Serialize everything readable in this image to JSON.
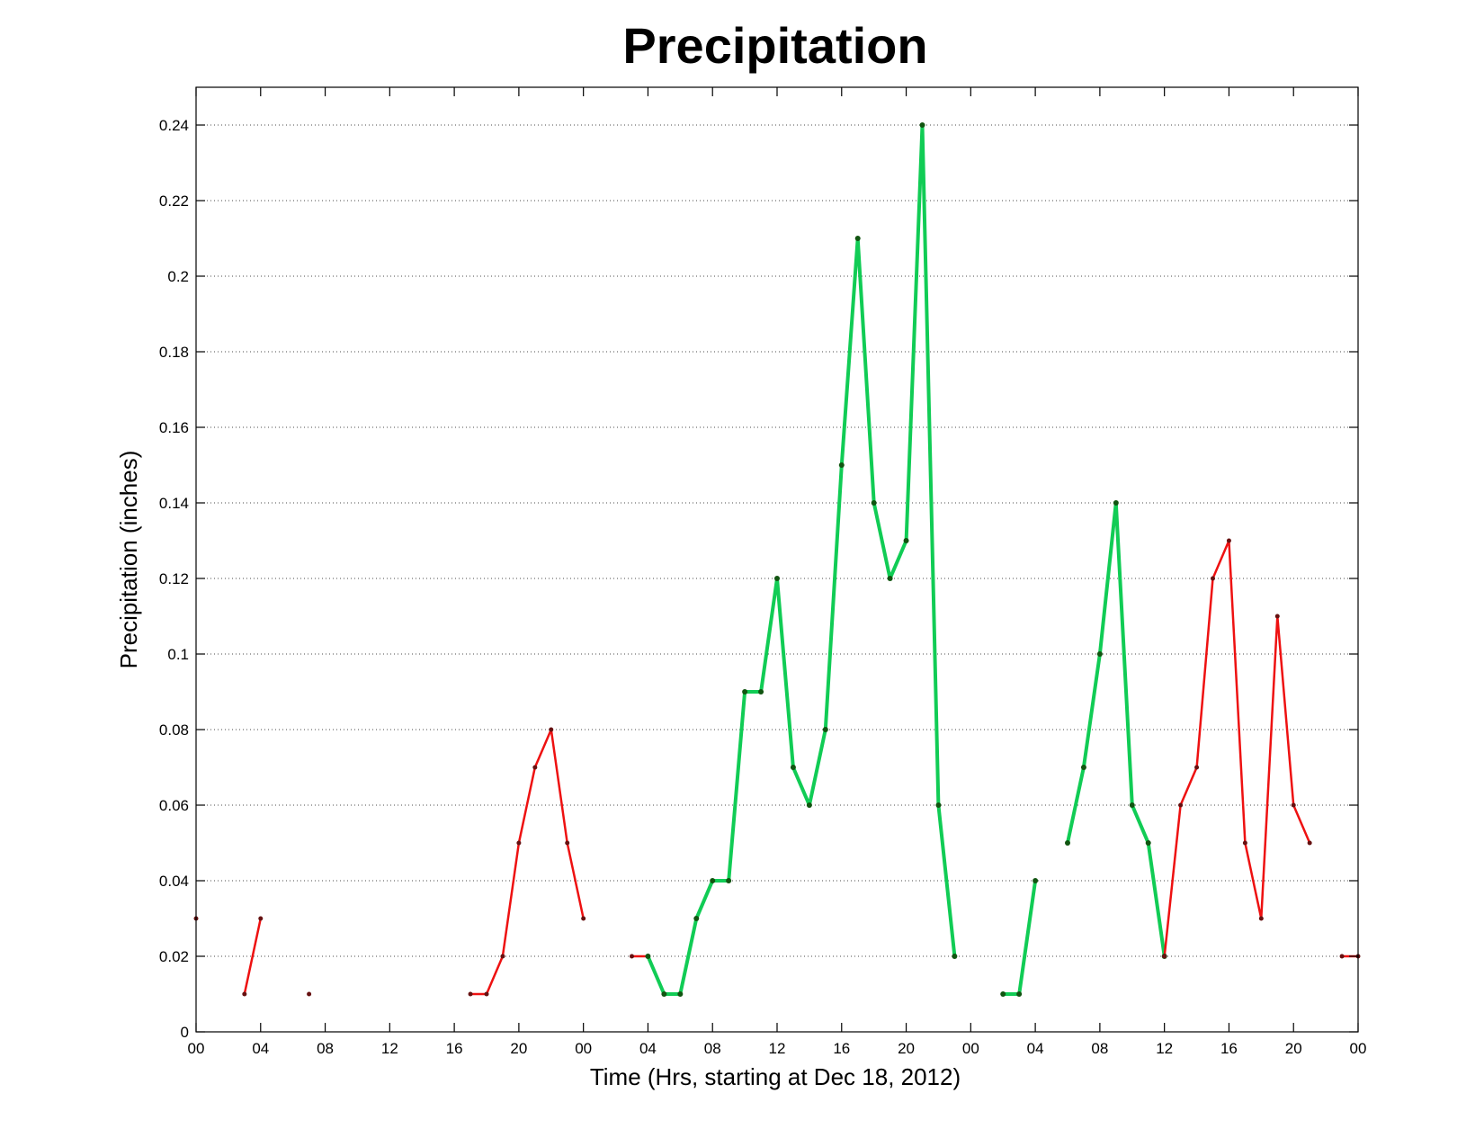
{
  "chart_data": {
    "type": "line",
    "title": "Precipitation",
    "xlabel": "Time (Hrs, starting at Dec 18, 2012)",
    "ylabel": "Precipitation (inches)",
    "xlim": [
      0,
      72
    ],
    "ylim": [
      0,
      0.25
    ],
    "grid": true,
    "x_ticks": [
      0,
      4,
      8,
      12,
      16,
      20,
      24,
      28,
      32,
      36,
      40,
      44,
      48,
      52,
      56,
      60,
      64,
      68,
      72
    ],
    "x_tick_labels": [
      "00",
      "04",
      "08",
      "12",
      "16",
      "20",
      "00",
      "04",
      "08",
      "12",
      "16",
      "20",
      "00",
      "04",
      "08",
      "12",
      "16",
      "20",
      "00"
    ],
    "y_ticks": [
      0,
      0.02,
      0.04,
      0.06,
      0.08,
      0.1,
      0.12,
      0.14,
      0.16,
      0.18,
      0.2,
      0.22,
      0.24
    ],
    "y_tick_labels": [
      "0",
      "0.02",
      "0.04",
      "0.06",
      "0.08",
      "0.1",
      "0.12",
      "0.14",
      "0.16",
      "0.18",
      "0.2",
      "0.22",
      "0.24"
    ],
    "colors": {
      "red": "#ee1111",
      "green": "#11cc55",
      "marker_red": "#661111",
      "marker_green": "#115511"
    },
    "segments": [
      {
        "color": "red",
        "points": [
          [
            0,
            0.03
          ]
        ]
      },
      {
        "color": "red",
        "points": [
          [
            3,
            0.01
          ],
          [
            4,
            0.03
          ]
        ]
      },
      {
        "color": "red",
        "points": [
          [
            7,
            0.01
          ]
        ]
      },
      {
        "color": "red",
        "points": [
          [
            17,
            0.01
          ],
          [
            18,
            0.01
          ],
          [
            19,
            0.02
          ],
          [
            20,
            0.05
          ],
          [
            21,
            0.07
          ],
          [
            22,
            0.08
          ],
          [
            23,
            0.05
          ],
          [
            24,
            0.03
          ]
        ]
      },
      {
        "color": "red",
        "points": [
          [
            27,
            0.02
          ],
          [
            28,
            0.02
          ]
        ]
      },
      {
        "color": "green",
        "points": [
          [
            28,
            0.02
          ],
          [
            29,
            0.01
          ],
          [
            30,
            0.01
          ],
          [
            31,
            0.03
          ],
          [
            32,
            0.04
          ],
          [
            33,
            0.04
          ],
          [
            34,
            0.09
          ],
          [
            35,
            0.09
          ],
          [
            36,
            0.12
          ],
          [
            37,
            0.07
          ],
          [
            38,
            0.06
          ],
          [
            39,
            0.08
          ],
          [
            40,
            0.15
          ],
          [
            41,
            0.21
          ],
          [
            42,
            0.14
          ],
          [
            43,
            0.12
          ],
          [
            44,
            0.13
          ],
          [
            45,
            0.24
          ],
          [
            46,
            0.06
          ],
          [
            47,
            0.02
          ]
        ]
      },
      {
        "color": "green",
        "points": [
          [
            50,
            0.01
          ],
          [
            51,
            0.01
          ],
          [
            52,
            0.04
          ]
        ]
      },
      {
        "color": "green",
        "points": [
          [
            54,
            0.05
          ],
          [
            55,
            0.07
          ],
          [
            56,
            0.1
          ],
          [
            57,
            0.14
          ],
          [
            58,
            0.06
          ],
          [
            59,
            0.05
          ],
          [
            60,
            0.02
          ]
        ]
      },
      {
        "color": "red",
        "points": [
          [
            60,
            0.02
          ],
          [
            61,
            0.06
          ],
          [
            62,
            0.07
          ],
          [
            63,
            0.12
          ],
          [
            64,
            0.13
          ],
          [
            65,
            0.05
          ],
          [
            66,
            0.03
          ],
          [
            67,
            0.11
          ],
          [
            68,
            0.06
          ],
          [
            69,
            0.05
          ]
        ]
      },
      {
        "color": "red",
        "points": [
          [
            71,
            0.02
          ],
          [
            72,
            0.02
          ]
        ]
      }
    ]
  }
}
